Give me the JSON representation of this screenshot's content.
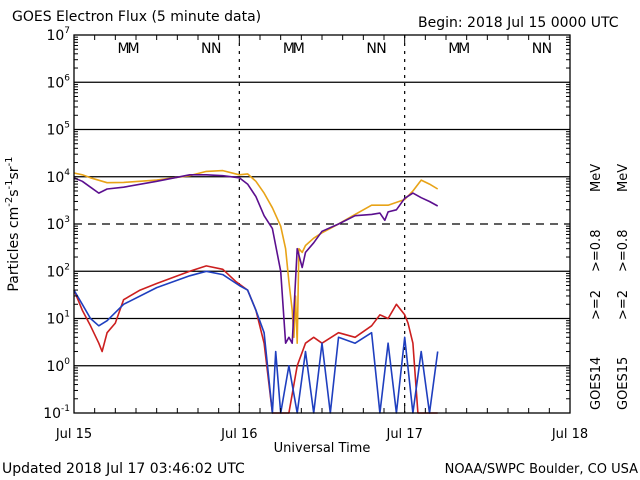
{
  "chart_data": {
    "type": "line",
    "title": "GOES Electron Flux (5 minute data)",
    "begin_label": "Begin: 2018 Jul 15 0000 UTC",
    "xlabel": "Universal Time",
    "ylabel": "Particles cm⁻²s⁻¹sr⁻¹",
    "ylabel_base": "Particles cm",
    "ylabel_parts": [
      [
        "-2",
        "s"
      ],
      [
        "-1",
        "sr"
      ],
      [
        "-1",
        ""
      ]
    ],
    "yscale": "log",
    "ylim": [
      0.1,
      10000000
    ],
    "y_ticks": [
      {
        "base": "10",
        "exp": "7"
      },
      {
        "base": "10",
        "exp": "6"
      },
      {
        "base": "10",
        "exp": "5"
      },
      {
        "base": "10",
        "exp": "4"
      },
      {
        "base": "10",
        "exp": "3"
      },
      {
        "base": "10",
        "exp": "2"
      },
      {
        "base": "10",
        "exp": "1"
      },
      {
        "base": "10",
        "exp": "0"
      },
      {
        "base": "10",
        "exp": "-1"
      }
    ],
    "xlim_days": [
      0,
      3
    ],
    "x_ticks": [
      "Jul 15",
      "Jul 16",
      "Jul 17",
      "Jul 18"
    ],
    "threshold_dashed_at": 1000,
    "markers": [
      {
        "day": 0.3,
        "label": "M",
        "color": "#1f3fbf"
      },
      {
        "day": 0.36,
        "label": "M",
        "color": "#cc1f1f"
      },
      {
        "day": 0.8,
        "label": "N",
        "color": "#1f3fbf"
      },
      {
        "day": 0.86,
        "label": "N",
        "color": "#cc1f1f"
      },
      {
        "day": 1.3,
        "label": "M",
        "color": "#1f3fbf"
      },
      {
        "day": 1.36,
        "label": "M",
        "color": "#cc1f1f"
      },
      {
        "day": 1.8,
        "label": "N",
        "color": "#1f3fbf"
      },
      {
        "day": 1.86,
        "label": "N",
        "color": "#cc1f1f"
      },
      {
        "day": 2.3,
        "label": "M",
        "color": "#1f3fbf"
      },
      {
        "day": 2.36,
        "label": "M",
        "color": "#cc1f1f"
      },
      {
        "day": 2.8,
        "label": "N",
        "color": "#1f3fbf"
      },
      {
        "day": 2.86,
        "label": "N",
        "color": "#cc1f1f"
      }
    ],
    "legend": [
      {
        "label": ">=0.8 MeV",
        "color": "#5b0f8f",
        "column": "GOES14"
      },
      {
        "label": ">=0.8 MeV",
        "color": "#e8a317",
        "column": "GOES15"
      },
      {
        "label": ">=2 MeV",
        "color": "#1f3fbf",
        "column": "GOES14"
      },
      {
        "label": ">=2 MeV",
        "color": "#cc1f1f",
        "column": "GOES15"
      }
    ],
    "legend_part1": [
      ">=0.8",
      ">=0.8"
    ],
    "legend_mev": "MeV",
    "legend_part2": [
      ">=2",
      ">=2"
    ],
    "satellites": [
      "GOES14",
      "GOES15"
    ],
    "series": [
      {
        "name": "GOES15 >=0.8 MeV",
        "color": "#e8a317",
        "x": [
          0,
          0.05,
          0.1,
          0.2,
          0.3,
          0.5,
          0.7,
          0.8,
          0.9,
          1.0,
          1.05,
          1.1,
          1.15,
          1.2,
          1.25,
          1.28,
          1.3,
          1.32,
          1.33,
          1.34,
          1.35,
          1.36,
          1.38,
          1.4,
          1.45,
          1.5,
          1.6,
          1.7,
          1.8,
          1.9,
          2.0,
          2.05,
          2.1,
          2.15,
          2.2
        ],
        "y": [
          12000,
          11000,
          9500,
          7500,
          7600,
          8500,
          10500,
          13000,
          13500,
          11000,
          11500,
          8000,
          4500,
          2200,
          900,
          300,
          60,
          15,
          4,
          30,
          3,
          300,
          250,
          350,
          500,
          650,
          1000,
          1600,
          2500,
          2500,
          3300,
          5000,
          8500,
          7000,
          5500
        ]
      },
      {
        "name": "GOES14 >=0.8 MeV",
        "color": "#5b0f8f",
        "x": [
          0,
          0.05,
          0.1,
          0.15,
          0.2,
          0.3,
          0.5,
          0.7,
          0.8,
          0.9,
          1.0,
          1.05,
          1.1,
          1.15,
          1.2,
          1.25,
          1.28,
          1.3,
          1.32,
          1.35,
          1.38,
          1.4,
          1.45,
          1.5,
          1.6,
          1.7,
          1.8,
          1.85,
          1.88,
          1.9,
          1.95,
          2.0,
          2.05,
          2.1,
          2.15,
          2.2
        ],
        "y": [
          9500,
          8000,
          6000,
          4500,
          5500,
          6000,
          8000,
          11000,
          11000,
          10500,
          9500,
          7000,
          3800,
          1500,
          800,
          100,
          3,
          4,
          3,
          300,
          120,
          250,
          400,
          700,
          1000,
          1500,
          1600,
          1700,
          1200,
          1800,
          2000,
          3500,
          4500,
          3600,
          3000,
          2400
        ]
      },
      {
        "name": "GOES15 >=2 MeV",
        "color": "#cc1f1f",
        "x": [
          0,
          0.05,
          0.1,
          0.15,
          0.17,
          0.2,
          0.25,
          0.3,
          0.4,
          0.5,
          0.7,
          0.8,
          0.9,
          0.98,
          1.05,
          1.1,
          1.15,
          1.2,
          1.22,
          1.24,
          1.3,
          1.35,
          1.4,
          1.45,
          1.5,
          1.6,
          1.7,
          1.8,
          1.85,
          1.9,
          1.95,
          2.0,
          2.02,
          2.05,
          2.08,
          2.1,
          2.15,
          2.2
        ],
        "y": [
          40,
          15,
          7,
          3,
          2,
          5,
          8,
          25,
          40,
          55,
          100,
          130,
          110,
          60,
          40,
          15,
          3,
          0.1,
          0.1,
          0.1,
          0.1,
          1,
          3,
          4,
          3,
          5,
          4,
          7,
          12,
          10,
          20,
          12,
          8,
          3,
          0.1,
          0.1,
          0.1,
          0.1
        ]
      },
      {
        "name": "GOES14 >=2 MeV",
        "color": "#1f3fbf",
        "x": [
          0,
          0.05,
          0.1,
          0.15,
          0.2,
          0.3,
          0.5,
          0.7,
          0.8,
          0.9,
          1.0,
          1.05,
          1.1,
          1.15,
          1.2,
          1.22,
          1.25,
          1.3,
          1.35,
          1.4,
          1.45,
          1.5,
          1.55,
          1.6,
          1.7,
          1.8,
          1.85,
          1.9,
          1.95,
          2.0,
          2.05,
          2.1,
          2.15,
          2.2
        ],
        "y": [
          40,
          20,
          10,
          7,
          9,
          20,
          45,
          80,
          100,
          85,
          50,
          40,
          15,
          5,
          0.1,
          2,
          0.1,
          1,
          0.1,
          2,
          0.1,
          3,
          0.1,
          4,
          3,
          5,
          0.1,
          3,
          0.1,
          4,
          0.1,
          2,
          0.1,
          2
        ]
      }
    ]
  },
  "footer": {
    "updated": "Updated 2018 Jul 17 03:46:02 UTC",
    "source": "NOAA/SWPC Boulder, CO USA"
  }
}
